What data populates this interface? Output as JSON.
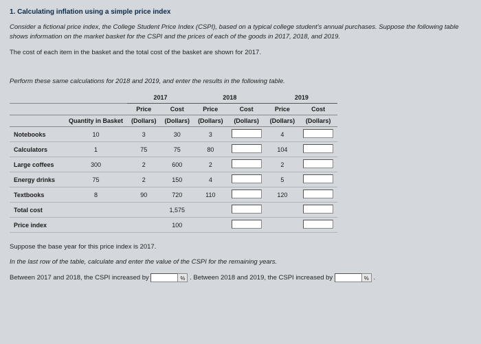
{
  "title": "1. Calculating inflation using a simple price index",
  "para1": "Consider a fictional price index, the College Student Price Index (CSPI), based on a typical college student's annual purchases. Suppose the following table shows information on the market basket for the CSPI and the prices of each of the goods in 2017, 2018, and 2019.",
  "para2": "The cost of each item in the basket and the total cost of the basket are shown for 2017.",
  "para3": "Perform these same calculations for 2018 and 2019, and enter the results in the following table.",
  "headers": {
    "qty": "Quantity in Basket",
    "y2017": "2017",
    "y2018": "2018",
    "y2019": "2019",
    "price": "Price",
    "cost": "Cost",
    "dollars": "(Dollars)"
  },
  "rows": {
    "notebooks": {
      "label": "Notebooks",
      "qty": "10",
      "p17": "3",
      "c17": "30",
      "p18": "3",
      "p19": "4"
    },
    "calculators": {
      "label": "Calculators",
      "qty": "1",
      "p17": "75",
      "c17": "75",
      "p18": "80",
      "p19": "104"
    },
    "coffees": {
      "label": "Large coffees",
      "qty": "300",
      "p17": "2",
      "c17": "600",
      "p18": "2",
      "p19": "2"
    },
    "energy": {
      "label": "Energy drinks",
      "qty": "75",
      "p17": "2",
      "c17": "150",
      "p18": "4",
      "p19": "5"
    },
    "textbooks": {
      "label": "Textbooks",
      "qty": "8",
      "p17": "90",
      "c17": "720",
      "p18": "110",
      "p19": "120"
    }
  },
  "totalcost": {
    "label": "Total cost",
    "c17": "1,575"
  },
  "priceindex": {
    "label": "Price index",
    "c17": "100"
  },
  "para4": "Suppose the base year for this price index is 2017.",
  "para5": "In the last row of the table, calculate and enter the value of the CSPI for the remaining years.",
  "fill": {
    "pre1": "Between 2017 and 2018, the CSPI increased by",
    "mid": ". Between 2018 and 2019, the CSPI increased by",
    "pct": "%",
    "end": "."
  }
}
